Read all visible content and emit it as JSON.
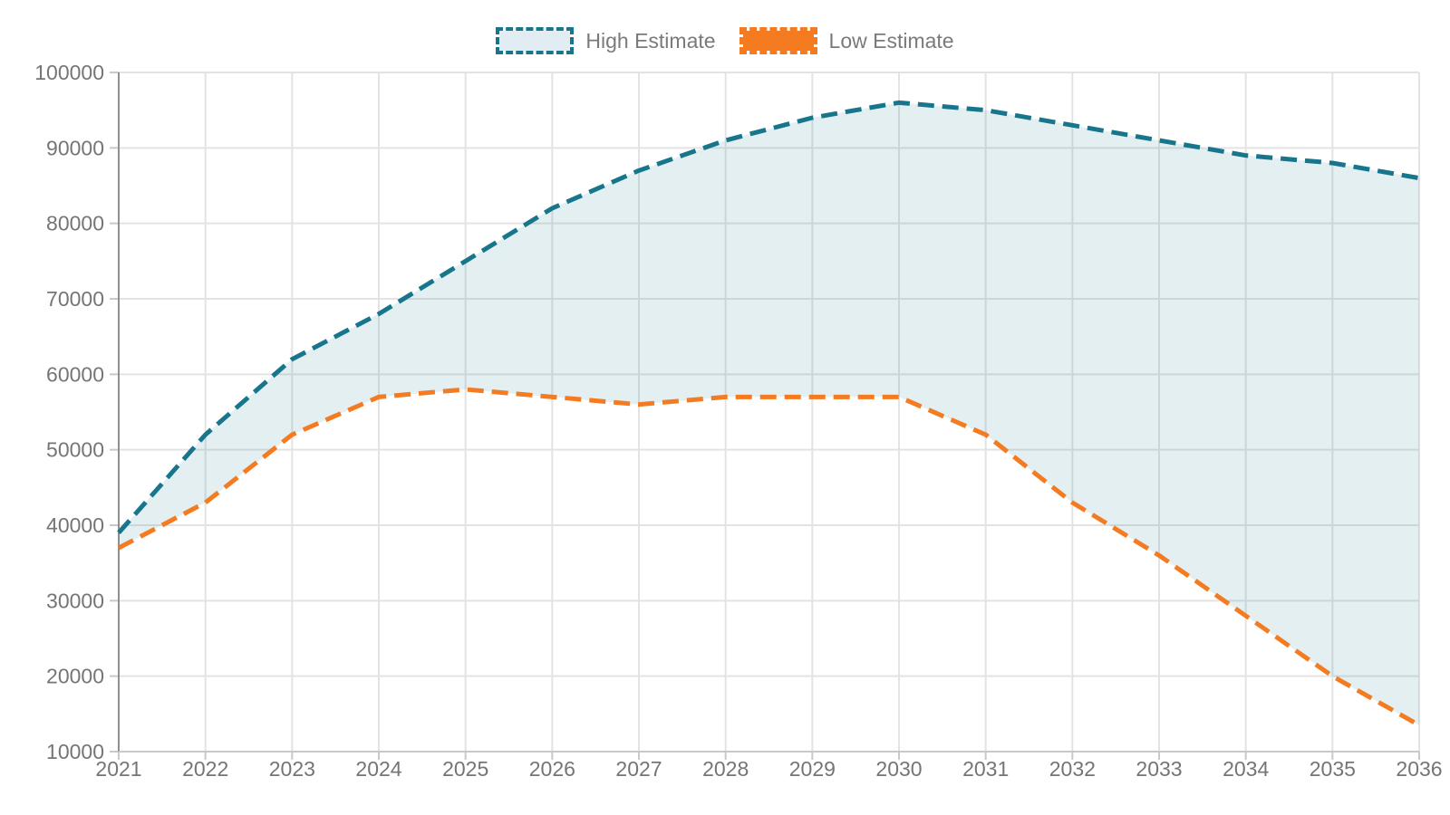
{
  "chart_data": {
    "type": "area",
    "title": "",
    "x": [
      2021,
      2022,
      2023,
      2024,
      2025,
      2026,
      2027,
      2028,
      2029,
      2030,
      2031,
      2032,
      2033,
      2034,
      2035,
      2036
    ],
    "series": [
      {
        "name": "High Estimate",
        "color": "#17768c",
        "line_style": "dashed",
        "values": [
          39000,
          52000,
          62000,
          68000,
          75000,
          82000,
          87000,
          91000,
          94000,
          96000,
          95000,
          93000,
          91000,
          89000,
          88000,
          86000
        ]
      },
      {
        "name": "Low Estimate",
        "color": "#f47b20",
        "line_style": "dashed",
        "values": [
          37000,
          43000,
          52000,
          57000,
          58000,
          57000,
          56000,
          57000,
          57000,
          57000,
          52000,
          43000,
          36000,
          28000,
          20000,
          13500
        ]
      }
    ],
    "band_fill_between_series": true,
    "band_fill_color": "#17788c",
    "band_fill_opacity": 0.12,
    "ylim": [
      10000,
      100000
    ],
    "y_ticks": [
      10000,
      20000,
      30000,
      40000,
      50000,
      60000,
      70000,
      80000,
      90000,
      100000
    ],
    "xlabel": "",
    "ylabel": "",
    "grid": true,
    "legend_position": "top-center",
    "colors": {
      "gridline": "#e3e3e3",
      "y_axis_line": "#8f8f8f",
      "x_axis_line": "#c9c9c9",
      "tick_text": "#757575",
      "legend_text": "#7a7a7a"
    }
  }
}
